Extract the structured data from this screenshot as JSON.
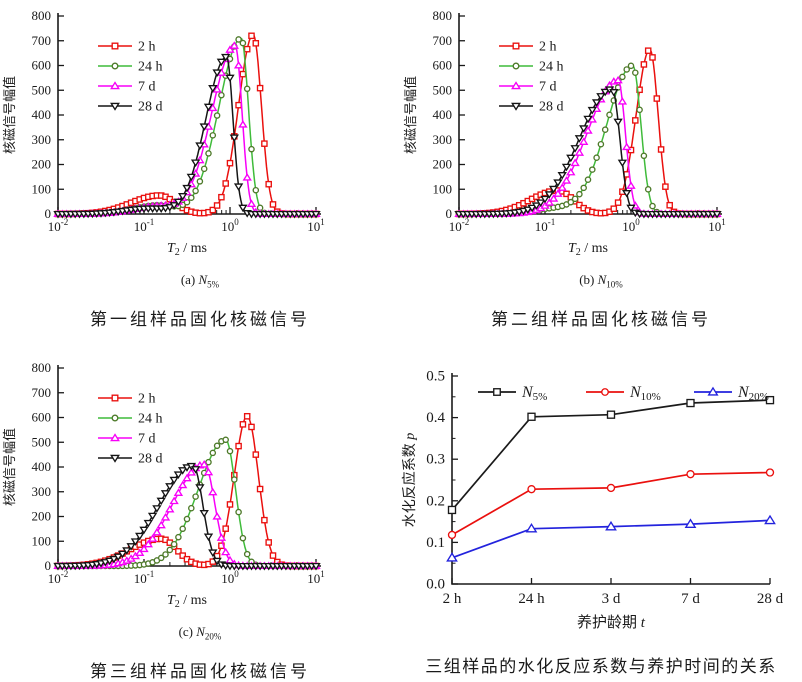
{
  "page": {
    "background": "#ffffff"
  },
  "chart_data": [
    {
      "type": "line",
      "panel_label": {
        "prefix": "(a) ",
        "main": "N",
        "sub": "5%"
      },
      "caption": "第一组样品固化核磁信号",
      "xlabel": {
        "it": "T",
        "sub": "2",
        "rest": " / ms"
      },
      "ylabel": "核磁信号幅值",
      "x_scale": "log",
      "x_range_log10": [
        -2,
        1
      ],
      "x_tick_exponents": [
        -2,
        -1,
        0,
        1
      ],
      "ylim": [
        0,
        800
      ],
      "y_tick_step": 100,
      "grid": false,
      "legend_position": "upper-left-inside",
      "series": [
        {
          "name": "2 h",
          "color": "#ea100e",
          "marker": "square",
          "main_peak": {
            "T2_ms": 1.85,
            "amplitude": 725
          },
          "secondary_peak": {
            "T2_ms": 0.15,
            "amplitude": 75
          },
          "bumps": [
            {
              "c": -0.82,
              "a": 75,
              "wl": 0.33,
              "wr": 0.18
            },
            {
              "c": 0.27,
              "a": 725,
              "wl": 0.17,
              "wr": 0.095
            }
          ]
        },
        {
          "name": "24 h",
          "color": "#3fbb3a",
          "marker_color": "#4e7a2a",
          "marker": "circle",
          "main_peak": {
            "T2_ms": 1.35,
            "amplitude": 710
          },
          "secondary_peak": {
            "T2_ms": 0.14,
            "amplitude": 35
          },
          "bumps": [
            {
              "c": -0.85,
              "a": 35,
              "wl": 0.28,
              "wr": 0.22
            },
            {
              "c": 0.13,
              "a": 710,
              "wl": 0.26,
              "wr": 0.085
            }
          ]
        },
        {
          "name": "7 d",
          "color": "#f800f8",
          "marker": "triangle-up",
          "main_peak": {
            "T2_ms": 1.15,
            "amplitude": 680
          },
          "secondary_peak": {
            "T2_ms": 0.14,
            "amplitude": 30
          },
          "bumps": [
            {
              "c": -0.85,
              "a": 30,
              "wl": 0.28,
              "wr": 0.22
            },
            {
              "c": 0.06,
              "a": 680,
              "wl": 0.27,
              "wr": 0.08
            }
          ]
        },
        {
          "name": "28 d",
          "color": "#151515",
          "marker": "triangle-down",
          "main_peak": {
            "T2_ms": 0.91,
            "amplitude": 635
          },
          "secondary_peak": {
            "T2_ms": 0.11,
            "amplitude": 22
          },
          "bumps": [
            {
              "c": -0.95,
              "a": 22,
              "wl": 0.28,
              "wr": 0.25
            },
            {
              "c": -0.04,
              "a": 635,
              "wl": 0.24,
              "wr": 0.075
            }
          ]
        }
      ]
    },
    {
      "type": "line",
      "panel_label": {
        "prefix": "(b) ",
        "main": "N",
        "sub": "10%"
      },
      "caption": "第二组样品固化核磁信号",
      "xlabel": {
        "it": "T",
        "sub": "2",
        "rest": " / ms"
      },
      "ylabel": "核磁信号幅值",
      "x_scale": "log",
      "x_range_log10": [
        -2,
        1
      ],
      "x_tick_exponents": [
        -2,
        -1,
        0,
        1
      ],
      "ylim": [
        0,
        800
      ],
      "y_tick_step": 100,
      "grid": false,
      "legend_position": "upper-left-inside",
      "series": [
        {
          "name": "2 h",
          "color": "#ea100e",
          "marker": "square",
          "main_peak": {
            "T2_ms": 1.66,
            "amplitude": 665
          },
          "secondary_peak": {
            "T2_ms": 0.14,
            "amplitude": 95
          },
          "bumps": [
            {
              "c": -0.85,
              "a": 95,
              "wl": 0.32,
              "wr": 0.18
            },
            {
              "c": 0.22,
              "a": 665,
              "wl": 0.16,
              "wr": 0.095
            }
          ]
        },
        {
          "name": "24 h",
          "color": "#3fbb3a",
          "marker_color": "#4e7a2a",
          "marker": "circle",
          "main_peak": {
            "T2_ms": 1.05,
            "amplitude": 600
          },
          "secondary_peak": {
            "T2_ms": 0.13,
            "amplitude": 20
          },
          "bumps": [
            {
              "c": -0.9,
              "a": 20,
              "wl": 0.26,
              "wr": 0.24
            },
            {
              "c": 0.02,
              "a": 600,
              "wl": 0.3,
              "wr": 0.095
            }
          ]
        },
        {
          "name": "7 d",
          "color": "#f800f8",
          "marker": "triangle-up",
          "main_peak": {
            "T2_ms": 0.71,
            "amplitude": 540
          },
          "secondary_peak": null,
          "bumps": [
            {
              "c": -0.15,
              "a": 540,
              "wl": 0.36,
              "wr": 0.085
            }
          ]
        },
        {
          "name": "28 d",
          "color": "#151515",
          "marker": "triangle-down",
          "main_peak": {
            "T2_ms": 0.6,
            "amplitude": 505
          },
          "secondary_peak": null,
          "bumps": [
            {
              "c": -0.22,
              "a": 505,
              "wl": 0.38,
              "wr": 0.09
            }
          ]
        }
      ]
    },
    {
      "type": "line",
      "panel_label": {
        "prefix": "(c) ",
        "main": "N",
        "sub": "20%"
      },
      "caption": "第三组样品固化核磁信号",
      "xlabel": {
        "it": "T",
        "sub": "2",
        "rest": " / ms"
      },
      "ylabel": "核磁信号幅值",
      "x_scale": "log",
      "x_range_log10": [
        -2,
        1
      ],
      "x_tick_exponents": [
        -2,
        -1,
        0,
        1
      ],
      "ylim": [
        0,
        800
      ],
      "y_tick_step": 100,
      "grid": false,
      "legend_position": "upper-left-inside",
      "series": [
        {
          "name": "2 h",
          "color": "#ea100e",
          "marker": "square",
          "main_peak": {
            "T2_ms": 1.6,
            "amplitude": 605
          },
          "secondary_peak": {
            "T2_ms": 0.16,
            "amplitude": 110
          },
          "bumps": [
            {
              "c": -0.8,
              "a": 110,
              "wl": 0.36,
              "wr": 0.18
            },
            {
              "c": 0.2,
              "a": 605,
              "wl": 0.15,
              "wr": 0.13
            }
          ]
        },
        {
          "name": "24 h",
          "color": "#3fbb3a",
          "marker_color": "#4e7a2a",
          "marker": "circle",
          "main_peak": {
            "T2_ms": 0.9,
            "amplitude": 510
          },
          "secondary_peak": null,
          "bumps": [
            {
              "c": -0.05,
              "a": 510,
              "wl": 0.32,
              "wr": 0.115
            }
          ]
        },
        {
          "name": "7 d",
          "color": "#f800f8",
          "marker": "triangle-up",
          "main_peak": {
            "T2_ms": 0.5,
            "amplitude": 410
          },
          "secondary_peak": null,
          "bumps": [
            {
              "c": -0.3,
              "a": 410,
              "wl": 0.37,
              "wr": 0.125
            }
          ]
        },
        {
          "name": "28 d",
          "color": "#151515",
          "marker": "triangle-down",
          "main_peak": {
            "T2_ms": 0.37,
            "amplitude": 405
          },
          "secondary_peak": null,
          "bumps": [
            {
              "c": -0.43,
              "a": 405,
              "wl": 0.4,
              "wr": 0.115
            }
          ]
        }
      ]
    },
    {
      "type": "line",
      "caption": "三组样品的水化反应系数与养护时间的关系",
      "xlabel": {
        "cn": "养护龄期 ",
        "it": "t"
      },
      "ylabel": {
        "cn": "水化反应系数 ",
        "it": "p"
      },
      "categories": [
        "2 h",
        "24 h",
        "3 d",
        "7 d",
        "28 d"
      ],
      "ylim": [
        0,
        0.5
      ],
      "y_tick_step": 0.1,
      "grid": false,
      "legend_position": "top-inside-horizontal",
      "series": [
        {
          "name": {
            "main": "N",
            "sub": "5%"
          },
          "color": "#1a1a1a",
          "marker": "square",
          "values": [
            0.178,
            0.402,
            0.407,
            0.435,
            0.442
          ]
        },
        {
          "name": {
            "main": "N",
            "sub": "10%"
          },
          "color": "#ea100e",
          "marker": "circle",
          "values": [
            0.118,
            0.228,
            0.231,
            0.264,
            0.268
          ]
        },
        {
          "name": {
            "main": "N",
            "sub": "20%"
          },
          "color": "#2323dd",
          "marker": "triangle-up",
          "values": [
            0.063,
            0.133,
            0.138,
            0.144,
            0.153
          ]
        }
      ]
    }
  ]
}
